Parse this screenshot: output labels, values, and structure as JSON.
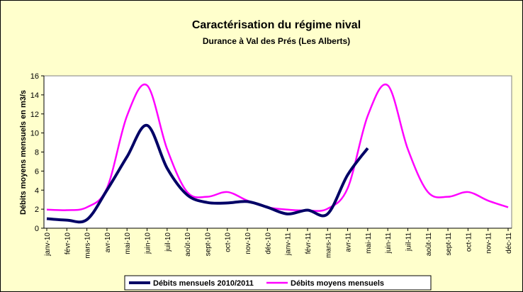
{
  "chart_data": {
    "type": "line",
    "title": "Caractérisation du régime nival",
    "subtitle": "Durance à Val des Prés (Les Alberts)",
    "y_label": "Débits moyens mensuels en m3/s",
    "categories": [
      "janv-10",
      "févr-10",
      "mars-10",
      "avr-10",
      "mai-10",
      "juin-10",
      "juil-10",
      "août-10",
      "sept-10",
      "oct-10",
      "nov-10",
      "déc-10",
      "janv-11",
      "févr-11",
      "mars-11",
      "avr-11",
      "mai-11",
      "juin-11",
      "juil-11",
      "août-11",
      "sept-11",
      "oct-11",
      "nov-11",
      "déc-11"
    ],
    "series": [
      {
        "name": "Débits mensuels 2010/2011",
        "color": "#000066",
        "values": [
          1.0,
          0.85,
          0.9,
          4.0,
          7.5,
          10.8,
          6.3,
          3.5,
          2.7,
          2.65,
          2.8,
          2.2,
          1.5,
          1.9,
          1.5,
          5.6,
          8.4,
          null,
          null,
          null,
          null,
          null,
          null,
          null
        ]
      },
      {
        "name": "Débits moyens mensuels",
        "color": "#ff00ff",
        "values": [
          1.95,
          1.9,
          2.2,
          4.2,
          11.8,
          15.0,
          8.3,
          3.8,
          3.3,
          3.8,
          2.9,
          2.2,
          1.95,
          1.85,
          2.05,
          4.2,
          11.8,
          15.0,
          8.3,
          3.8,
          3.3,
          3.8,
          2.9,
          2.2
        ]
      }
    ],
    "ylim": [
      0,
      16
    ],
    "yticks": [
      0,
      2,
      4,
      6,
      8,
      10,
      12,
      14,
      16
    ],
    "grid": false,
    "legend": "bottom"
  }
}
